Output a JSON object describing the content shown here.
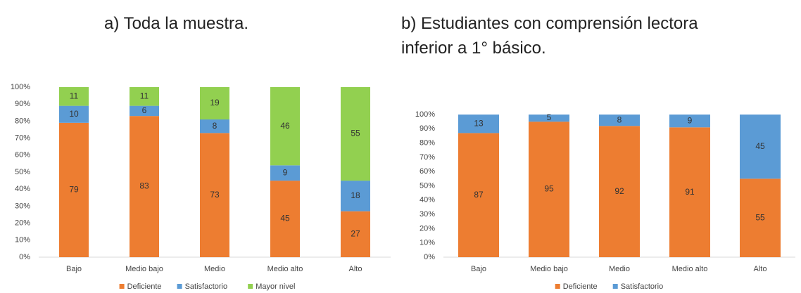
{
  "chart_data": [
    {
      "type": "stacked_bar",
      "title": "a) Toda la muestra.",
      "categories": [
        "Bajo",
        "Medio bajo",
        "Medio",
        "Medio alto",
        "Alto"
      ],
      "series": [
        {
          "name": "Deficiente",
          "color": "#ED7D31",
          "values": [
            79,
            83,
            73,
            45,
            27
          ]
        },
        {
          "name": "Satisfactorio",
          "color": "#5B9BD5",
          "values": [
            10,
            6,
            8,
            9,
            18
          ]
        },
        {
          "name": "Mayor nivel",
          "color": "#92D050",
          "values": [
            11,
            11,
            19,
            46,
            55
          ]
        }
      ],
      "ylim": [
        0,
        100
      ],
      "yticks": [
        {
          "value": 0,
          "label": "0%"
        },
        {
          "value": 10,
          "label": "10%"
        },
        {
          "value": 20,
          "label": "20%"
        },
        {
          "value": 30,
          "label": "30%"
        },
        {
          "value": 40,
          "label": "40%"
        },
        {
          "value": 50,
          "label": "50%"
        },
        {
          "value": 60,
          "label": "60%"
        },
        {
          "value": 70,
          "label": "70%"
        },
        {
          "value": 80,
          "label": "80%"
        },
        {
          "value": 90,
          "label": "90%"
        },
        {
          "value": 100,
          "label": "100%"
        }
      ],
      "grid": false,
      "legend": "bottom"
    },
    {
      "type": "stacked_bar",
      "title": "b) Estudiantes con comprensión lectora inferior a 1° básico.",
      "categories": [
        "Bajo",
        "Medio bajo",
        "Medio",
        "Medio alto",
        "Alto"
      ],
      "series": [
        {
          "name": "Deficiente",
          "color": "#ED7D31",
          "values": [
            87,
            95,
            92,
            91,
            55
          ]
        },
        {
          "name": "Satisfactorio",
          "color": "#5B9BD5",
          "values": [
            13,
            5,
            8,
            9,
            45
          ]
        }
      ],
      "ylim": [
        0,
        100
      ],
      "yticks": [
        {
          "value": 0,
          "label": "0%"
        },
        {
          "value": 10,
          "label": "10%"
        },
        {
          "value": 20,
          "label": "20%"
        },
        {
          "value": 30,
          "label": "30%"
        },
        {
          "value": 40,
          "label": "40%"
        },
        {
          "value": 50,
          "label": "50%"
        },
        {
          "value": 60,
          "label": "60%"
        },
        {
          "value": 70,
          "label": "70%"
        },
        {
          "value": 80,
          "label": "80%"
        },
        {
          "value": 90,
          "label": "90%"
        },
        {
          "value": 100,
          "label": "100%"
        }
      ],
      "grid": false,
      "legend": "bottom"
    }
  ]
}
